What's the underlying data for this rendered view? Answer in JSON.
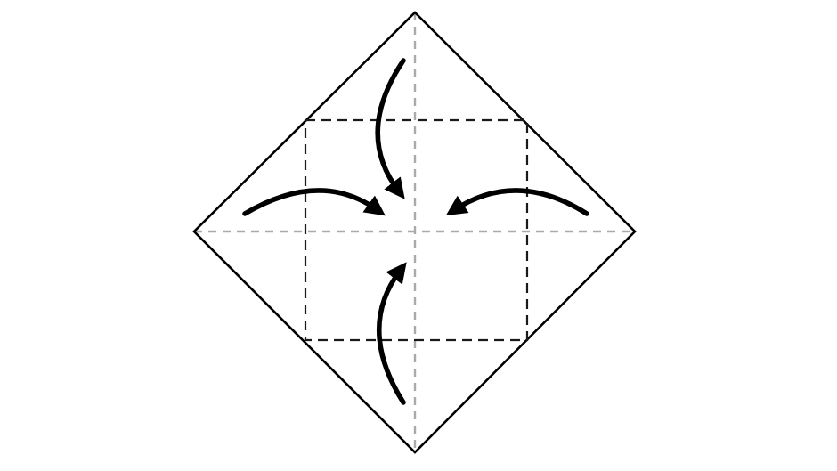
{
  "diagram": {
    "kind": "origami-fold-instruction",
    "shape": "square-paper-diamond-orientation",
    "step": "fold-four-corners-to-center",
    "colors": {
      "background": "#ffffff",
      "outline": "#000000",
      "valley_fold_line": "#1a1a1a",
      "crease_line": "#aaaaaa",
      "arrow": "#000000"
    },
    "arrows": [
      {
        "name": "fold-arrow-top",
        "from": "top-corner",
        "to": "center"
      },
      {
        "name": "fold-arrow-left",
        "from": "left-corner",
        "to": "center"
      },
      {
        "name": "fold-arrow-right",
        "from": "right-corner",
        "to": "center"
      },
      {
        "name": "fold-arrow-bottom",
        "from": "bottom-corner",
        "to": "center"
      }
    ]
  }
}
